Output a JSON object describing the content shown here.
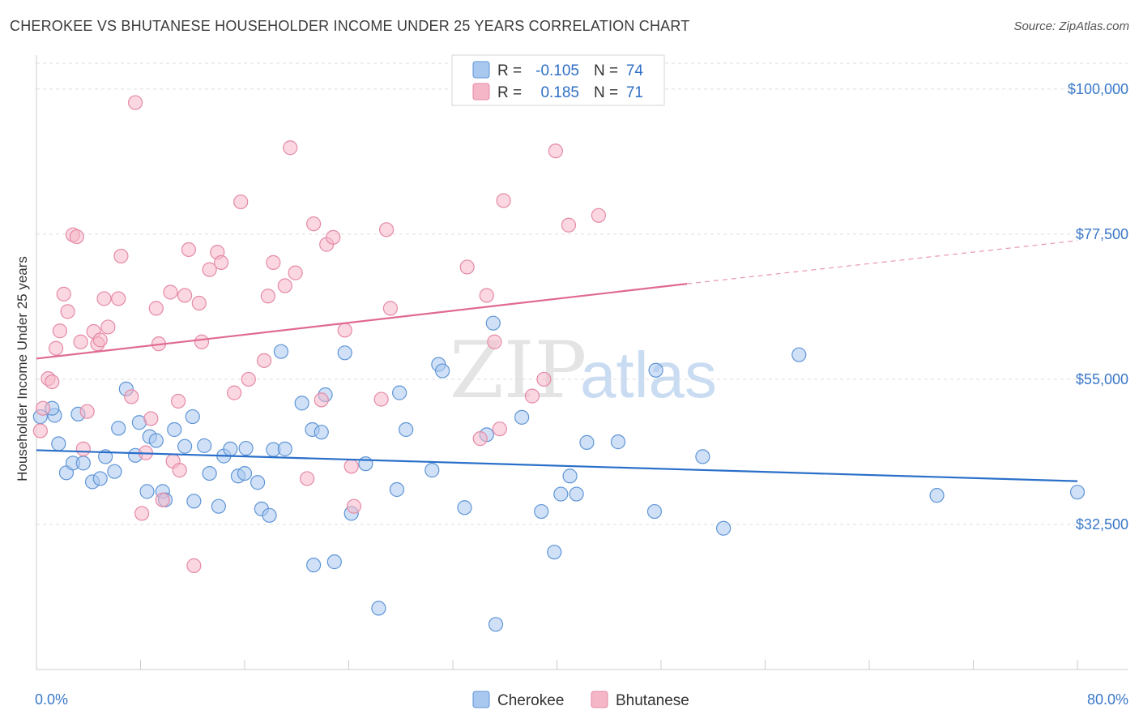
{
  "header": {
    "title": "CHEROKEE VS BHUTANESE HOUSEHOLDER INCOME UNDER 25 YEARS CORRELATION CHART",
    "source": "Source: ZipAtlas.com"
  },
  "watermark": {
    "zip": "ZIP",
    "atlas": "atlas"
  },
  "legend": {
    "r_label": "R =",
    "n_label": "N =",
    "rows": [
      {
        "series": "Cherokee",
        "r": "-0.105",
        "n": "74"
      },
      {
        "series": "Bhutanese",
        "r": "0.185",
        "n": "71"
      }
    ]
  },
  "colors": {
    "cherokee_fill": "#a9c8f0",
    "cherokee_stroke": "#5f95d6",
    "cherokee_line": "#2a6fc9",
    "bhutanese_fill": "#f5b6c8",
    "bhutanese_stroke": "#e58aa6",
    "bhutanese_line": "#e06a92",
    "tick_text": "#3a78c9",
    "grid": "#dddddd"
  },
  "chart_data": {
    "type": "scatter",
    "title": "CHEROKEE VS BHUTANESE HOUSEHOLDER INCOME UNDER 25 YEARS CORRELATION CHART",
    "xlabel": "",
    "ylabel": "Householder Income Under 25 years",
    "xlim": [
      0,
      80
    ],
    "ylim": [
      10000,
      104000
    ],
    "x_tick_labels": [
      "0.0%",
      "80.0%"
    ],
    "y_ticks": [
      32500,
      55000,
      77500,
      100000
    ],
    "y_tick_labels": [
      "$32,500",
      "$55,000",
      "$77,500",
      "$100,000"
    ],
    "grid": true,
    "legend_position": "bottom-center",
    "series": [
      {
        "name": "Cherokee",
        "trend": {
          "x": [
            0,
            80
          ],
          "y": [
            44000,
            39200
          ]
        },
        "points": [
          [
            0.3,
            49200
          ],
          [
            1.4,
            49400
          ],
          [
            1.7,
            45000
          ],
          [
            2.3,
            40500
          ],
          [
            2.8,
            42000
          ],
          [
            3.2,
            49600
          ],
          [
            3.6,
            42000
          ],
          [
            4.3,
            39100
          ],
          [
            4.9,
            39600
          ],
          [
            5.3,
            43000
          ],
          [
            6.0,
            40700
          ],
          [
            6.3,
            47400
          ],
          [
            6.9,
            53500
          ],
          [
            7.6,
            43200
          ],
          [
            7.9,
            48300
          ],
          [
            8.5,
            37600
          ],
          [
            8.7,
            46100
          ],
          [
            9.2,
            45500
          ],
          [
            9.7,
            37600
          ],
          [
            9.9,
            36300
          ],
          [
            10.6,
            47200
          ],
          [
            11.4,
            44600
          ],
          [
            12.0,
            49200
          ],
          [
            12.1,
            36100
          ],
          [
            12.9,
            44700
          ],
          [
            13.3,
            40400
          ],
          [
            14.0,
            35300
          ],
          [
            14.4,
            43100
          ],
          [
            14.9,
            44200
          ],
          [
            15.5,
            40000
          ],
          [
            16.0,
            40400
          ],
          [
            16.1,
            44300
          ],
          [
            17.0,
            39000
          ],
          [
            17.3,
            34900
          ],
          [
            17.9,
            33900
          ],
          [
            18.2,
            44100
          ],
          [
            18.8,
            59300
          ],
          [
            19.1,
            44200
          ],
          [
            20.4,
            51300
          ],
          [
            21.2,
            47200
          ],
          [
            21.3,
            26200
          ],
          [
            21.9,
            46800
          ],
          [
            22.2,
            52600
          ],
          [
            22.9,
            26700
          ],
          [
            23.7,
            59100
          ],
          [
            24.2,
            34200
          ],
          [
            25.3,
            41900
          ],
          [
            26.3,
            19500
          ],
          [
            27.7,
            37900
          ],
          [
            27.9,
            52900
          ],
          [
            28.4,
            47200
          ],
          [
            30.4,
            40900
          ],
          [
            30.9,
            57300
          ],
          [
            31.2,
            56300
          ],
          [
            32.9,
            35100
          ],
          [
            34.6,
            46400
          ],
          [
            35.1,
            63700
          ],
          [
            35.3,
            17000
          ],
          [
            37.3,
            49100
          ],
          [
            38.8,
            34500
          ],
          [
            39.8,
            28200
          ],
          [
            40.3,
            37200
          ],
          [
            41.0,
            40000
          ],
          [
            41.5,
            37200
          ],
          [
            42.3,
            45200
          ],
          [
            44.7,
            45300
          ],
          [
            47.5,
            34500
          ],
          [
            47.6,
            56400
          ],
          [
            51.2,
            43000
          ],
          [
            52.8,
            31900
          ],
          [
            58.6,
            58800
          ],
          [
            69.2,
            37000
          ],
          [
            80.0,
            37500
          ],
          [
            1.2,
            50500
          ]
        ]
      },
      {
        "name": "Bhutanese",
        "trend": {
          "x": [
            0,
            50
          ],
          "y": [
            58200,
            69800
          ]
        },
        "trend_dashed": {
          "x": [
            50,
            80
          ],
          "y": [
            69800,
            76500
          ]
        },
        "points": [
          [
            0.3,
            47000
          ],
          [
            0.5,
            50500
          ],
          [
            0.9,
            55100
          ],
          [
            1.2,
            54600
          ],
          [
            1.5,
            59800
          ],
          [
            1.8,
            62500
          ],
          [
            2.1,
            68200
          ],
          [
            2.4,
            65500
          ],
          [
            2.8,
            77400
          ],
          [
            3.1,
            77100
          ],
          [
            3.4,
            60800
          ],
          [
            3.6,
            44200
          ],
          [
            3.9,
            50000
          ],
          [
            4.4,
            62400
          ],
          [
            4.7,
            60500
          ],
          [
            4.9,
            61100
          ],
          [
            5.2,
            67500
          ],
          [
            5.5,
            63100
          ],
          [
            6.3,
            67500
          ],
          [
            6.5,
            74100
          ],
          [
            7.3,
            52300
          ],
          [
            7.6,
            97900
          ],
          [
            8.1,
            34200
          ],
          [
            8.4,
            43600
          ],
          [
            8.8,
            48900
          ],
          [
            9.2,
            66000
          ],
          [
            9.4,
            60500
          ],
          [
            9.7,
            36300
          ],
          [
            10.3,
            68500
          ],
          [
            10.5,
            42300
          ],
          [
            10.9,
            51600
          ],
          [
            11.0,
            40900
          ],
          [
            11.4,
            68000
          ],
          [
            11.7,
            75100
          ],
          [
            12.1,
            26100
          ],
          [
            12.5,
            66800
          ],
          [
            12.7,
            60800
          ],
          [
            13.3,
            72000
          ],
          [
            13.9,
            74700
          ],
          [
            14.2,
            73100
          ],
          [
            15.2,
            52900
          ],
          [
            15.7,
            82500
          ],
          [
            16.3,
            55000
          ],
          [
            17.5,
            57900
          ],
          [
            17.8,
            67900
          ],
          [
            18.2,
            73100
          ],
          [
            19.1,
            69500
          ],
          [
            19.5,
            90900
          ],
          [
            19.9,
            71500
          ],
          [
            20.8,
            39600
          ],
          [
            21.3,
            79100
          ],
          [
            21.9,
            51800
          ],
          [
            22.3,
            75900
          ],
          [
            22.8,
            77000
          ],
          [
            23.7,
            62600
          ],
          [
            24.2,
            41500
          ],
          [
            24.4,
            35300
          ],
          [
            26.5,
            51900
          ],
          [
            26.9,
            78200
          ],
          [
            27.2,
            66000
          ],
          [
            33.1,
            72400
          ],
          [
            34.1,
            45800
          ],
          [
            34.6,
            68000
          ],
          [
            35.2,
            60800
          ],
          [
            35.6,
            47300
          ],
          [
            35.9,
            82700
          ],
          [
            38.1,
            52400
          ],
          [
            39.0,
            55000
          ],
          [
            39.9,
            90400
          ],
          [
            40.9,
            78900
          ],
          [
            43.2,
            80400
          ]
        ]
      }
    ]
  }
}
